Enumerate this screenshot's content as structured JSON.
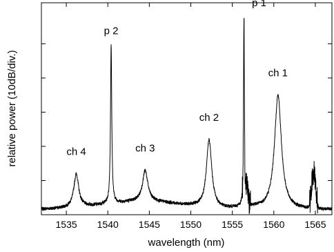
{
  "chart_data": {
    "type": "line",
    "title": "",
    "xlabel": "wavelength (nm)",
    "ylabel": "relative power (10dB/div.)",
    "xlim": [
      1532,
      1567
    ],
    "ylim": [
      0,
      6.2
    ],
    "grid": false,
    "x_ticks": [
      1535,
      1540,
      1545,
      1550,
      1555,
      1560,
      1565
    ],
    "y_ticks": [
      0,
      1,
      2,
      3,
      4,
      5
    ],
    "baseline": 0.15,
    "peaks": [
      {
        "label": "ch 4",
        "x": 1536.2,
        "y": 1.2
      },
      {
        "label": "p 2",
        "x": 1540.4,
        "y": 5.0
      },
      {
        "label": "ch 3",
        "x": 1544.5,
        "y": 1.3
      },
      {
        "label": "ch 2",
        "x": 1552.2,
        "y": 2.2
      },
      {
        "label": "p 1",
        "x": 1556.4,
        "y": 6.0
      },
      {
        "label": "ch 1",
        "x": 1560.5,
        "y": 3.5
      }
    ],
    "additional_features": [
      {
        "x": 1556.6,
        "y": 1.0,
        "note": "noisy shoulder"
      },
      {
        "x": 1564.8,
        "y": 1.25,
        "note": "noisy peak"
      }
    ]
  }
}
